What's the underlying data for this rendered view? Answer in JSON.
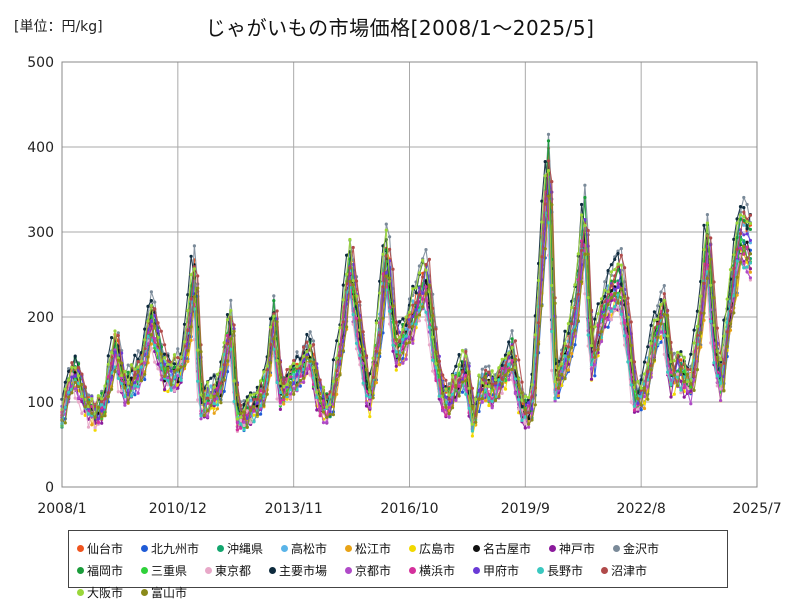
{
  "unit_label": "[単位：円/kg]",
  "title": "じゃがいもの市場価格[2008/1～2025/5]",
  "chart_data": {
    "type": "line",
    "title": "じゃがいもの市場価格[2008/1～2025/5]",
    "unit": "円/kg",
    "x_range": [
      "2008/1",
      "2025/7"
    ],
    "ylim": [
      0,
      500
    ],
    "y_ticks": [
      0,
      100,
      200,
      300,
      400,
      500
    ],
    "x_tick_labels": [
      "2008/1",
      "2010/12",
      "2013/11",
      "2016/10",
      "2019/9",
      "2022/8",
      "2025/7"
    ],
    "grid": true,
    "legend_position": "bottom",
    "reference_profile": {
      "note": "approximate shared monthly profile (year, month, 円/kg) read from the plotted envelope",
      "points": [
        [
          2008,
          1,
          82
        ],
        [
          2008,
          3,
          120
        ],
        [
          2008,
          5,
          140
        ],
        [
          2008,
          8,
          100
        ],
        [
          2008,
          11,
          85
        ],
        [
          2009,
          2,
          100
        ],
        [
          2009,
          5,
          170
        ],
        [
          2009,
          8,
          115
        ],
        [
          2009,
          11,
          130
        ],
        [
          2010,
          1,
          140
        ],
        [
          2010,
          4,
          205
        ],
        [
          2010,
          6,
          170
        ],
        [
          2010,
          8,
          135
        ],
        [
          2010,
          11,
          135
        ],
        [
          2011,
          1,
          140
        ],
        [
          2011,
          3,
          180
        ],
        [
          2011,
          5,
          260
        ],
        [
          2011,
          7,
          100
        ],
        [
          2011,
          10,
          105
        ],
        [
          2012,
          1,
          120
        ],
        [
          2012,
          4,
          200
        ],
        [
          2012,
          6,
          80
        ],
        [
          2012,
          9,
          85
        ],
        [
          2012,
          12,
          100
        ],
        [
          2013,
          3,
          130
        ],
        [
          2013,
          5,
          210
        ],
        [
          2013,
          7,
          110
        ],
        [
          2013,
          10,
          125
        ],
        [
          2014,
          1,
          140
        ],
        [
          2014,
          4,
          160
        ],
        [
          2014,
          7,
          100
        ],
        [
          2014,
          10,
          95
        ],
        [
          2015,
          1,
          160
        ],
        [
          2015,
          4,
          270
        ],
        [
          2015,
          7,
          180
        ],
        [
          2015,
          10,
          100
        ],
        [
          2016,
          1,
          190
        ],
        [
          2016,
          3,
          280
        ],
        [
          2016,
          6,
          165
        ],
        [
          2016,
          9,
          180
        ],
        [
          2017,
          1,
          225
        ],
        [
          2017,
          3,
          250
        ],
        [
          2017,
          6,
          150
        ],
        [
          2017,
          9,
          95
        ],
        [
          2017,
          12,
          120
        ],
        [
          2018,
          3,
          145
        ],
        [
          2018,
          5,
          75
        ],
        [
          2018,
          8,
          125
        ],
        [
          2018,
          11,
          115
        ],
        [
          2019,
          2,
          130
        ],
        [
          2019,
          5,
          160
        ],
        [
          2019,
          8,
          90
        ],
        [
          2019,
          11,
          90
        ],
        [
          2020,
          2,
          280
        ],
        [
          2020,
          4,
          390
        ],
        [
          2020,
          6,
          120
        ],
        [
          2020,
          9,
          150
        ],
        [
          2020,
          12,
          200
        ],
        [
          2021,
          3,
          320
        ],
        [
          2021,
          5,
          145
        ],
        [
          2021,
          8,
          200
        ],
        [
          2021,
          11,
          230
        ],
        [
          2022,
          2,
          245
        ],
        [
          2022,
          4,
          190
        ],
        [
          2022,
          6,
          105
        ],
        [
          2022,
          9,
          115
        ],
        [
          2022,
          12,
          175
        ],
        [
          2023,
          3,
          215
        ],
        [
          2023,
          5,
          130
        ],
        [
          2023,
          8,
          140
        ],
        [
          2023,
          11,
          120
        ],
        [
          2024,
          2,
          200
        ],
        [
          2024,
          4,
          300
        ],
        [
          2024,
          6,
          180
        ],
        [
          2024,
          8,
          120
        ],
        [
          2024,
          11,
          220
        ],
        [
          2025,
          2,
          300
        ],
        [
          2025,
          5,
          285
        ]
      ]
    },
    "series": [
      {
        "name": "仙台市",
        "color": "#f0541e"
      },
      {
        "name": "北九州市",
        "color": "#1f5bd6"
      },
      {
        "name": "沖縄県",
        "color": "#13a66e"
      },
      {
        "name": "高松市",
        "color": "#5ab4e8"
      },
      {
        "name": "松江市",
        "color": "#e8a317"
      },
      {
        "name": "広島市",
        "color": "#f2d900"
      },
      {
        "name": "名古屋市",
        "color": "#111111"
      },
      {
        "name": "神戸市",
        "color": "#8b1a9c"
      },
      {
        "name": "金沢市",
        "color": "#7a8a99"
      },
      {
        "name": "福岡市",
        "color": "#1a9c3a"
      },
      {
        "name": "三重県",
        "color": "#2fd13a"
      },
      {
        "name": "東京都",
        "color": "#e8a8c8"
      },
      {
        "name": "主要市場",
        "color": "#0d2a3d"
      },
      {
        "name": "京都市",
        "color": "#b04ac8"
      },
      {
        "name": "横浜市",
        "color": "#d4309c"
      },
      {
        "name": "甲府市",
        "color": "#6a3ad6"
      },
      {
        "name": "長野市",
        "color": "#3ac8c0"
      },
      {
        "name": "沼津市",
        "color": "#b04a4a"
      },
      {
        "name": "大阪市",
        "color": "#9ad63a"
      },
      {
        "name": "富山市",
        "color": "#8a8a1a"
      }
    ]
  }
}
